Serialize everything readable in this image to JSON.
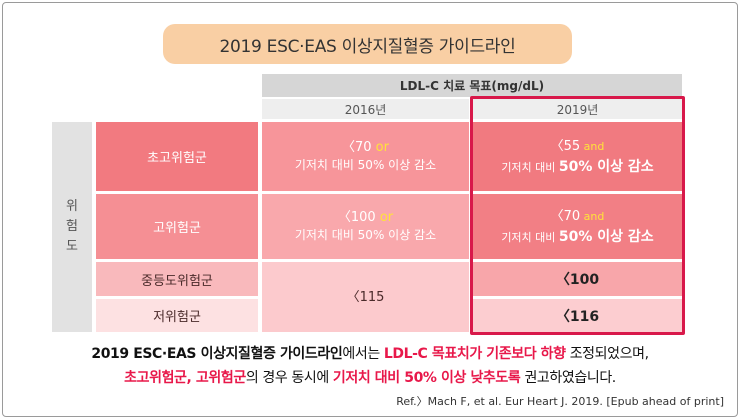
{
  "title": "2019 ESC·EAS 이상지질혈증 가이드라인",
  "header": {
    "main": "LDL-C 치료 목표(mg/dL)",
    "year_2016": "2016년",
    "year_2019": "2019년"
  },
  "risk_label": [
    "위",
    "험",
    "도"
  ],
  "categories": {
    "very_high": "초고위험군",
    "high": "고위험군",
    "moderate": "중등도위험군",
    "low": "저위험군"
  },
  "y2016": {
    "very_high": {
      "value": "〈70",
      "or": " or",
      "line2": "기저치 대비 50% 이상 감소"
    },
    "high": {
      "value": "〈100",
      "or": " or",
      "line2": "기저치 대비 50% 이상 감소"
    },
    "moderate_low": "〈115"
  },
  "y2019": {
    "very_high": {
      "value": "〈55",
      "and": " and",
      "prefix": "기저치 대비 ",
      "emph": "50% 이상 감소"
    },
    "high": {
      "value": "〈70",
      "and": " and",
      "prefix": "기저치 대비 ",
      "emph": "50% 이상 감소"
    },
    "moderate": "〈100",
    "low": "〈116"
  },
  "summary": {
    "l1_a": "2019 ESC·EAS 이상지질혈증 가이드라인",
    "l1_b": "에서는  ",
    "l1_c": "LDL-C 목표치가 기존보다  하향",
    "l1_d": " 조정되었으며,",
    "l2_a": "초고위험군, 고위험군",
    "l2_b": "의 경우 동시에 ",
    "l2_c": "기저치 대비 50% 이상 낮추도록",
    "l2_d": "  권고하였습니다."
  },
  "reference": "Ref.〉Mach F, et al. Eur Heart J. 2019. [Epub ahead of print]",
  "colors": {
    "title_bg": "#f9cfa4",
    "highlight_border": "#d8184a",
    "accent_text": "#e8184a",
    "or_and_text": "#ffe23a"
  }
}
